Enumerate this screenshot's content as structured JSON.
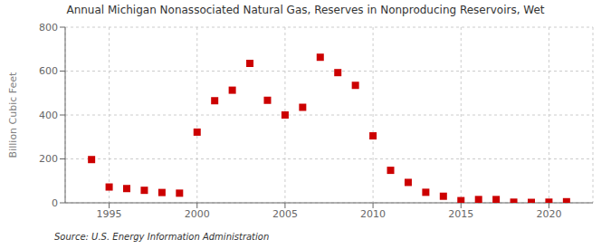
{
  "chart_data": {
    "type": "scatter",
    "title": "Annual Michigan Nonassociated Natural Gas, Reserves in Nonproducing Reservoirs, Wet",
    "ylabel": "Billion Cubic Feet",
    "annotation": "Source: U.S. Energy Information Administration",
    "color": "#cc0000",
    "marker": "square",
    "grid": true,
    "x": [
      1994,
      1995,
      1996,
      1997,
      1998,
      1999,
      2000,
      2001,
      2002,
      2003,
      2004,
      2005,
      2006,
      2007,
      2008,
      2009,
      2010,
      2011,
      2012,
      2013,
      2014,
      2015,
      2016,
      2017,
      2018,
      2019,
      2020,
      2021
    ],
    "values": [
      197,
      72,
      65,
      57,
      47,
      44,
      322,
      465,
      513,
      635,
      467,
      400,
      435,
      663,
      593,
      535,
      305,
      148,
      93,
      48,
      30,
      10,
      15,
      15,
      3,
      2,
      3,
      5
    ],
    "xlim": [
      1992.5,
      2022.5
    ],
    "ylim": [
      0,
      800
    ],
    "xticks": [
      1995,
      2000,
      2005,
      2010,
      2015,
      2020
    ],
    "yticks": [
      0,
      200,
      400,
      600,
      800
    ]
  }
}
